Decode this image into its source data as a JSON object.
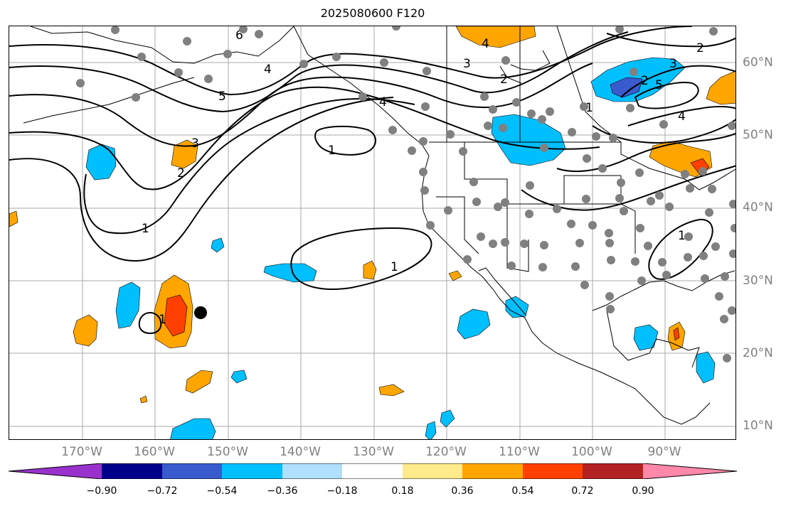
{
  "title": "2025080600 F120",
  "map": {
    "lon_labels": [
      "170°W",
      "160°W",
      "150°W",
      "140°W",
      "130°W",
      "120°W",
      "110°W",
      "100°W",
      "90°W"
    ],
    "lat_labels": [
      "60°N",
      "50°N",
      "40°N",
      "30°N",
      "20°N",
      "10°N"
    ],
    "contour_labels": [
      "6",
      "4",
      "5",
      "4",
      "3",
      "2",
      "1",
      "1",
      "1",
      "2",
      "3",
      "4",
      "2",
      "3",
      "5",
      "1",
      "2",
      "4",
      "1",
      "1"
    ],
    "colors": {
      "positive_0_36": "#ffa500",
      "positive_0_54": "#ff4000",
      "negative_0_36": "#00bfff",
      "negative_0_54": "#4060d0",
      "station_dot": "#808080",
      "gridline": "#a9a9a9"
    }
  },
  "colorbar": {
    "ticks": [
      "−0.90",
      "−0.72",
      "−0.54",
      "−0.36",
      "−0.18",
      "0.18",
      "0.36",
      "0.54",
      "0.72",
      "0.90"
    ],
    "colors": [
      "#9932cc",
      "#00008b",
      "#3a5bcd",
      "#00bfff",
      "#b0e0ff",
      "#ffffff",
      "#ffea8c",
      "#ffa500",
      "#ff4000",
      "#b22222",
      "#ff88aa"
    ]
  }
}
